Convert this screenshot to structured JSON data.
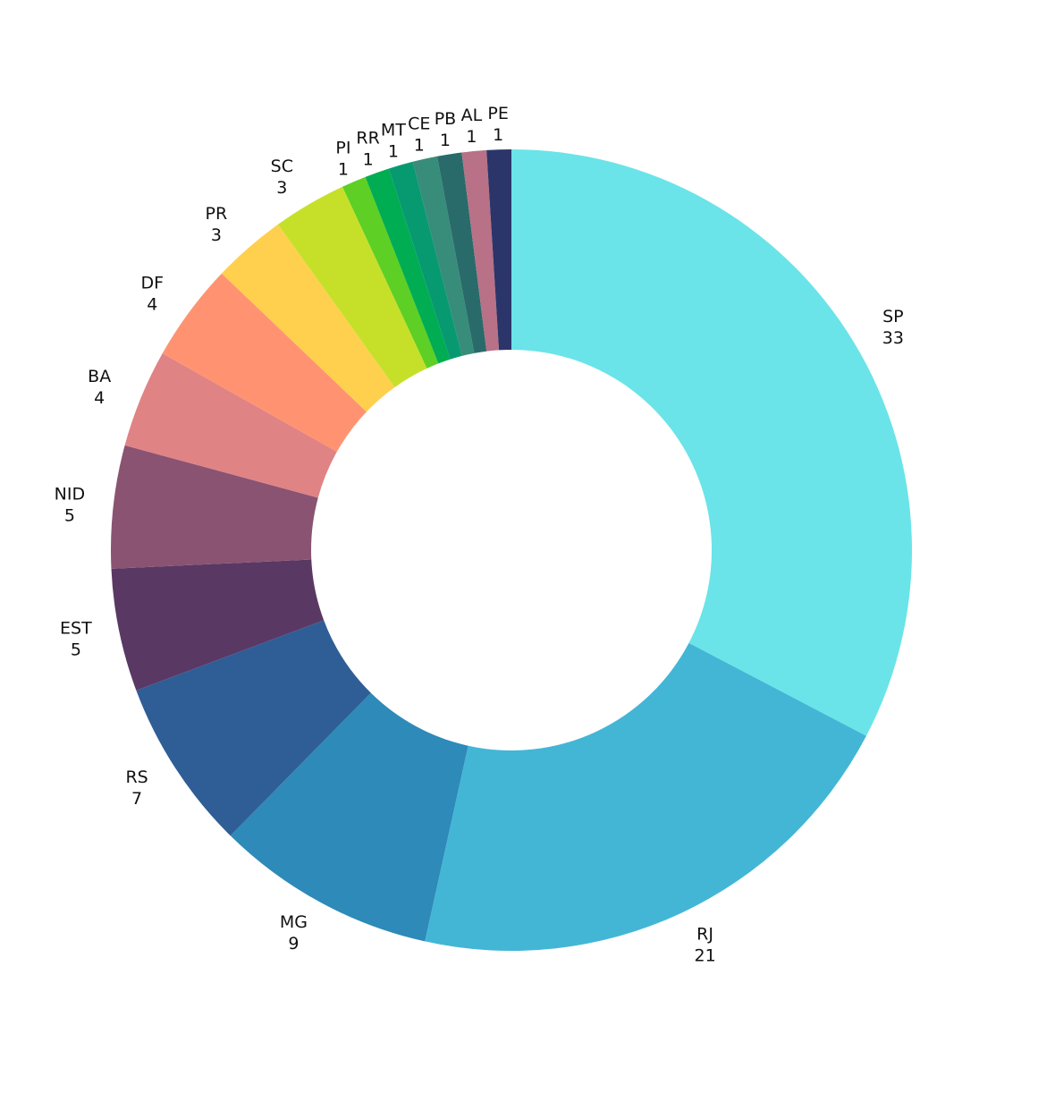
{
  "chart_data": {
    "type": "pie",
    "hole": true,
    "title": "",
    "categories": [
      "SP",
      "RJ",
      "MG",
      "RS",
      "EST",
      "NID",
      "BA",
      "DF",
      "PR",
      "SC",
      "PI",
      "RR",
      "MT",
      "CE",
      "PB",
      "AL",
      "PE"
    ],
    "values": [
      33,
      21,
      9,
      7,
      5,
      5,
      4,
      4,
      3,
      3,
      1,
      1,
      1,
      1,
      1,
      1,
      1
    ],
    "labels": [
      {
        "name": "SP",
        "value": "33"
      },
      {
        "name": "RJ",
        "value": "21"
      },
      {
        "name": "MG",
        "value": "9"
      },
      {
        "name": "RS",
        "value": "7"
      },
      {
        "name": "EST",
        "value": "5"
      },
      {
        "name": "NID",
        "value": "5"
      },
      {
        "name": "BA",
        "value": "4"
      },
      {
        "name": "DF",
        "value": "4"
      },
      {
        "name": "PR",
        "value": "3"
      },
      {
        "name": "SC",
        "value": "3"
      },
      {
        "name": "PI",
        "value": "1"
      },
      {
        "name": "RR",
        "value": "1"
      },
      {
        "name": "MT",
        "value": "1"
      },
      {
        "name": "CE",
        "value": "1"
      },
      {
        "name": "PB",
        "value": "1"
      },
      {
        "name": "AL",
        "value": "1"
      },
      {
        "name": "PE",
        "value": "1"
      }
    ],
    "colors": [
      "#6ae4e8",
      "#43b6d6",
      "#2e8ab8",
      "#2f5e96",
      "#5a3864",
      "#8a5372",
      "#e08384",
      "#ff9371",
      "#ffd04e",
      "#c6e02a",
      "#5ecf24",
      "#00ad52",
      "#079a70",
      "#388c7a",
      "#296b6b",
      "#b87186",
      "#2b3569"
    ],
    "direction": "clockwise",
    "start_angle": "12 o'clock",
    "legend": "none"
  }
}
